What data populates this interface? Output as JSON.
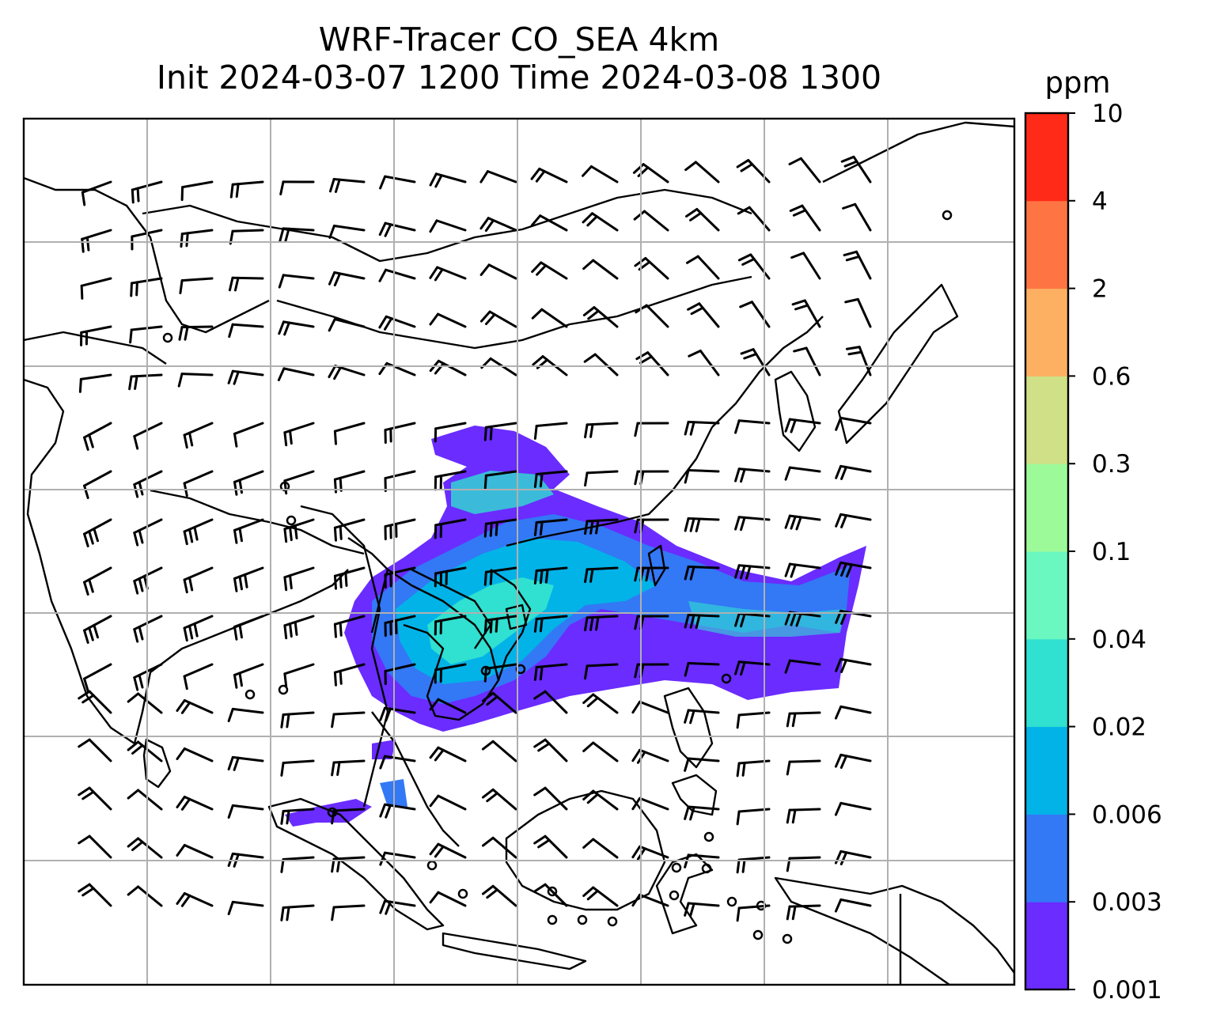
{
  "title": {
    "line1": "WRF-Tracer CO_SEA 4km",
    "line2": "Init 2024-03-07 1200 Time 2024-03-08 1300"
  },
  "colorbar": {
    "unit": "ppm",
    "ticks": [
      "0.001",
      "0.003",
      "0.006",
      "0.02",
      "0.04",
      "0.1",
      "0.3",
      "0.6",
      "2",
      "4",
      "10"
    ],
    "colors": [
      "#6a2cff",
      "#3378f5",
      "#02b3e8",
      "#30e0d0",
      "#6af8c0",
      "#9dfa98",
      "#cfe087",
      "#fdb062",
      "#ff7443",
      "#ff2b18"
    ]
  },
  "map": {
    "gridlines": true,
    "features": [
      "coastlines",
      "country-borders",
      "wind-barbs",
      "co-tracer-shading"
    ],
    "accent": "#000000"
  }
}
